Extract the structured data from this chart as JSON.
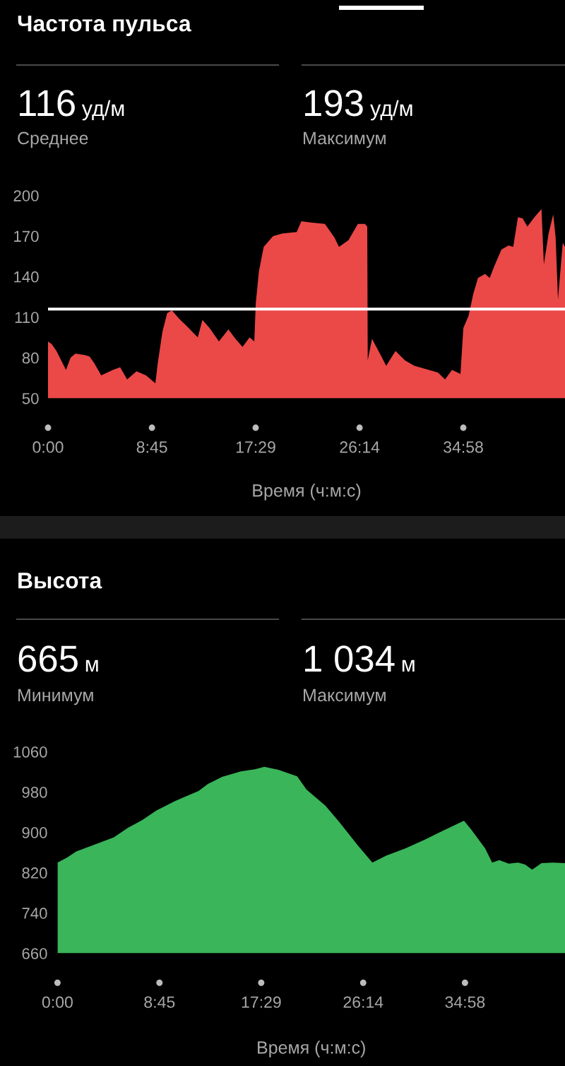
{
  "chart_data": [
    {
      "type": "area",
      "title": "Частота пульса",
      "xlabel": "Время (ч:м:с)",
      "annotations": [
        "116",
        "уд/м",
        "Среднее",
        "193",
        "уд/м",
        "Максимум"
      ],
      "x": [
        0,
        0.32,
        0.71,
        1.51,
        1.9,
        2.3,
        3.09,
        3.49,
        3.89,
        4.48,
        5.47,
        6.07,
        6.66,
        7.45,
        8.25,
        9.04,
        9.24,
        9.63,
        10.03,
        10.43,
        11.02,
        11.62,
        12.61,
        13.0,
        13.6,
        14.39,
        15.19,
        15.78,
        16.38,
        16.97,
        17.37,
        17.49,
        17.76,
        18.16,
        18.95,
        19.75,
        20.94,
        21.33,
        22.12,
        23.31,
        24.11,
        24.5,
        25.3,
        26.09,
        26.68,
        26.88,
        26.92,
        27.28,
        28.07,
        28.47,
        29.26,
        30.05,
        30.85,
        31.64,
        32.83,
        33.43,
        34.02,
        34.73,
        34.97,
        35.41,
        35.8,
        36.2,
        36.8,
        37.19,
        37.59,
        38.18,
        38.78,
        39.17,
        39.57,
        39.97,
        40.36,
        40.96,
        41.55,
        41.75,
        42.15,
        42.54,
        42.74,
        42.94,
        43.34,
        43.53
      ],
      "values": [
        92,
        90,
        85,
        71,
        80,
        83,
        82,
        81,
        76,
        67,
        71,
        73,
        64,
        70,
        67,
        61,
        76,
        99,
        113,
        115,
        109,
        104,
        95,
        108,
        102,
        92,
        101,
        94,
        88,
        95,
        92,
        120,
        144,
        162,
        170,
        172,
        173,
        181,
        180,
        179,
        169,
        162,
        167,
        179,
        179,
        177,
        78,
        94,
        81,
        74,
        85,
        78,
        74,
        72,
        69,
        64,
        71,
        68,
        102,
        111,
        127,
        139,
        142,
        139,
        148,
        160,
        163,
        162,
        184,
        183,
        177,
        184,
        190,
        149,
        172,
        186,
        169,
        123,
        165,
        162
      ],
      "color": "#eb4848",
      "xlim": [
        0,
        43.53
      ],
      "ylim": [
        50,
        200
      ],
      "xticks": [
        {
          "value": 0,
          "label": "0:00"
        },
        {
          "value": 8.75,
          "label": "8:45"
        },
        {
          "value": 17.483,
          "label": "17:29"
        },
        {
          "value": 26.233,
          "label": "26:14"
        },
        {
          "value": 34.967,
          "label": "34:58"
        }
      ],
      "yticks": [
        50,
        80,
        110,
        140,
        170,
        200
      ],
      "ref_lines": [
        {
          "axis": "y",
          "value": 116,
          "color": "#ffffff"
        }
      ]
    },
    {
      "type": "area",
      "title": "Высота",
      "xlabel": "Время (ч:м:с)",
      "annotations": [
        "665",
        "м",
        "Минимум",
        "1 034",
        "м",
        "Максимум"
      ],
      "x": [
        0,
        0.81,
        1.61,
        3.23,
        4.84,
        6.05,
        7.26,
        8.47,
        10.08,
        12.1,
        12.91,
        14.12,
        15.73,
        16.94,
        17.75,
        18.96,
        20.57,
        21.37,
        22.99,
        24.2,
        25.81,
        27.02,
        28.23,
        29.84,
        31.46,
        33.07,
        34.88,
        35.49,
        36.7,
        37.3,
        37.91,
        38.72,
        39.52,
        40.13,
        40.73,
        41.54,
        42.55,
        43.55
      ],
      "values": [
        840,
        850,
        862,
        876,
        890,
        909,
        924,
        943,
        962,
        982,
        996,
        1010,
        1021,
        1025,
        1030,
        1024,
        1011,
        985,
        953,
        920,
        873,
        840,
        854,
        868,
        885,
        903,
        923,
        906,
        868,
        840,
        845,
        838,
        840,
        836,
        826,
        839,
        840,
        839
      ],
      "color": "#3ab55a",
      "xlim": [
        0,
        43.55
      ],
      "ylim": [
        660,
        1060
      ],
      "xticks": [
        {
          "value": 0,
          "label": "0:00"
        },
        {
          "value": 8.75,
          "label": "8:45"
        },
        {
          "value": 17.483,
          "label": "17:29"
        },
        {
          "value": 26.233,
          "label": "26:14"
        },
        {
          "value": 34.967,
          "label": "34:58"
        }
      ],
      "yticks": [
        660,
        740,
        820,
        900,
        980,
        1060
      ]
    }
  ]
}
